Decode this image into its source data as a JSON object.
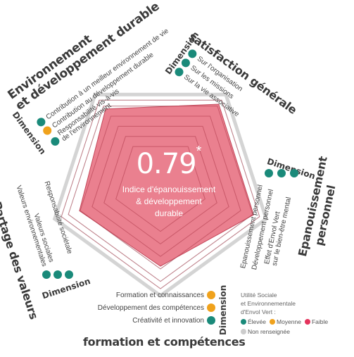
{
  "center": {
    "score": "0.79",
    "score_mark": "*",
    "caption_line1": "Indice d'épanouissement",
    "caption_line2": "& développement",
    "caption_line3": "durable"
  },
  "dimension_label": "Dimension",
  "sections": {
    "environnement": {
      "title_line1": "Environnement",
      "title_line2": "et développement durable",
      "items": [
        {
          "label": "Contribution à un meilleur environnement de vie",
          "level": "elevee"
        },
        {
          "label": "Contribution au développement durable",
          "level": "moyenne"
        },
        {
          "label": "Responsabilité vis-à-vis",
          "label2": "de l'environnement",
          "level": "elevee"
        }
      ]
    },
    "satisfaction": {
      "title": "satisfaction générale",
      "items": [
        {
          "label": "Sur l'organisation",
          "level": "elevee"
        },
        {
          "label": "Sur les missions",
          "level": "elevee"
        },
        {
          "label": "Sur la vie associative",
          "level": "elevee"
        }
      ]
    },
    "epanouissement": {
      "title_line1": "Epanouissement",
      "title_line2": "personnel",
      "items": [
        {
          "label": "Epanouissement personnel",
          "level": "elevee"
        },
        {
          "label": "Développement personnel",
          "level": "elevee"
        },
        {
          "label": "Effet d'Envol Vert",
          "label2": "sur le bien-être mental",
          "level": "elevee"
        }
      ]
    },
    "formation": {
      "title": "formation et compétences",
      "items": [
        {
          "label": "Formation et connaissances",
          "level": "moyenne"
        },
        {
          "label": "Développement des compétences",
          "level": "moyenne"
        },
        {
          "label": "Créativité et innovation",
          "level": "elevee"
        }
      ]
    },
    "partage": {
      "title": "Partage des valeurs",
      "items": [
        {
          "label": "Responsabilité sociétale",
          "level": "elevee"
        },
        {
          "label": "Valeurs sociales",
          "level": "elevee"
        },
        {
          "label": "Valeurs environnementales",
          "level": "elevee"
        }
      ]
    }
  },
  "legend": {
    "title_line1": "Utilité Sociale",
    "title_line2": "et Environnementale",
    "title_line3": "d'Envol Vert :",
    "levels": [
      {
        "key": "elevee",
        "label": "Élevée",
        "color": "#1a8a7a"
      },
      {
        "key": "moyenne",
        "label": "Moyenne",
        "color": "#f0a21c"
      },
      {
        "key": "faible",
        "label": "Faible",
        "color": "#e4335c"
      },
      {
        "key": "non",
        "label": "Non renseignée",
        "color": "#cccccc"
      }
    ]
  },
  "colors": {
    "radar_fill": "#e87585",
    "radar_stroke": "#c4475a",
    "grid_line": "#b13a4c",
    "outer_frame": "#d4d4d4",
    "center_text": "#ffffff"
  },
  "radar_values": {
    "environnement": 0.8,
    "satisfaction": 0.85,
    "epanouissement": 0.84,
    "formation": 0.7,
    "partage": 0.73
  }
}
